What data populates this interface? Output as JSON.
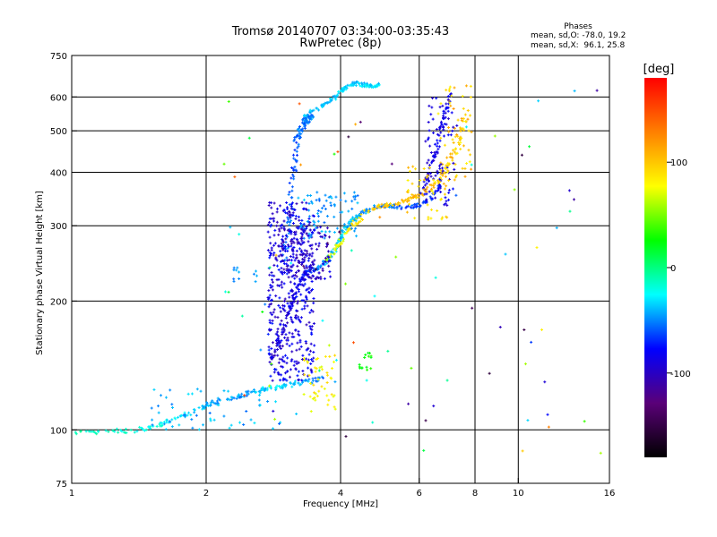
{
  "chart_data": {
    "type": "scatter",
    "title": "Tromsø 20140707 03:34:00-03:35:43",
    "subtitle": "RwPretec (8p)",
    "xlabel": "Frequency [MHz]",
    "ylabel": "Stationary phase Virtual Height [km]",
    "x_scale": "log",
    "y_scale": "log",
    "xlim": [
      1,
      16
    ],
    "ylim": [
      75,
      750
    ],
    "x_ticks": [
      1,
      2,
      4,
      6,
      8,
      10,
      16
    ],
    "y_ticks": [
      75,
      100,
      200,
      300,
      400,
      500,
      600,
      750
    ],
    "x_grid": [
      2,
      4,
      6,
      8,
      10
    ],
    "y_grid": [
      100,
      200,
      300,
      400,
      500,
      600
    ],
    "stats": {
      "heading": "Phases",
      "line1": "mean, sd,O: -78.0, 19.2",
      "line2": "mean, sd,X:  96.1, 25.8"
    },
    "colorbar": {
      "label": "[deg]",
      "range": [
        -180,
        180
      ],
      "ticks": [
        100,
        0,
        -100
      ],
      "stops": [
        "#000000",
        "#5a0078",
        "#0000ff",
        "#00ffff",
        "#00ff00",
        "#ffff00",
        "#ff8000",
        "#ff0000"
      ]
    },
    "series": [
      {
        "traces": [
          {
            "f": [
              1.0,
              1.2,
              1.4,
              1.55,
              1.7,
              1.85,
              2.0,
              2.2,
              2.4,
              2.6,
              2.75,
              2.95,
              3.15,
              3.4,
              3.7
            ],
            "h": [
              98,
              99,
              100,
              102,
              106,
              110,
              114,
              118,
              120,
              123,
              125,
              126,
              128,
              130,
              133
            ],
            "c": [
              -10,
              -15,
              -20,
              -25,
              -30,
              -35,
              -40,
              -45,
              -45,
              -40,
              -35,
              -30,
              -35,
              -45,
              -55
            ],
            "s": 0.025
          },
          {
            "f": [
              2.8,
              2.9,
              3.0,
              3.1,
              3.2,
              3.3,
              3.4,
              3.6,
              3.75,
              3.9,
              4.0,
              4.15,
              4.3,
              4.5,
              4.8,
              5.2,
              5.6,
              6.0,
              6.4,
              6.8
            ],
            "h": [
              145,
              160,
              175,
              195,
              215,
              230,
              235,
              240,
              250,
              265,
              282,
              300,
              312,
              322,
              332,
              334,
              330,
              335,
              350,
              380
            ],
            "c": [
              -100,
              -95,
              -95,
              -90,
              -85,
              -80,
              -70,
              -50,
              -40,
              -35,
              -30,
              -35,
              -40,
              -45,
              -50,
              -55,
              -60,
              -65,
              -70,
              -75
            ],
            "s": 0.02
          },
          {
            "f": [
              3.0,
              3.05,
              3.1,
              3.15,
              3.2,
              3.25,
              3.3,
              3.35,
              3.4,
              3.45
            ],
            "h": [
              250,
              300,
              360,
              420,
              480,
              500,
              520,
              530,
              535,
              540
            ],
            "c": [
              -55,
              -55,
              -60,
              -60,
              -60,
              -55,
              -55,
              -50,
              -50,
              -50
            ],
            "s": 0.03
          },
          {
            "f": [
              3.3,
              3.5,
              3.7,
              3.9,
              4.05,
              4.2,
              4.35,
              4.5,
              4.7,
              4.9
            ],
            "h": [
              540,
              560,
              575,
              600,
              625,
              640,
              645,
              640,
              635,
              640
            ],
            "c": [
              -40,
              -40,
              -35,
              -35,
              -35,
              -35,
              -35,
              -35,
              -30,
              -30
            ],
            "s": 0.02
          },
          {
            "f": [
              3.7,
              3.9,
              4.1,
              4.3,
              4.6,
              5.0,
              5.4,
              5.8,
              6.2,
              6.6,
              7.0,
              7.4,
              7.7
            ],
            "h": [
              250,
              265,
              285,
              305,
              325,
              335,
              340,
              348,
              360,
              380,
              420,
              480,
              560
            ],
            "c": [
              60,
              70,
              80,
              90,
              95,
              100,
              100,
              105,
              110,
              105,
              100,
              95,
              90
            ],
            "s": 0.025
          },
          {
            "f": [
              6.1,
              6.3,
              6.5,
              6.7,
              6.9,
              7.1
            ],
            "h": [
              355,
              390,
              440,
              500,
              560,
              620
            ],
            "c": [
              -90,
              -90,
              -85,
              -85,
              -80,
              -80
            ],
            "s": 0.025
          }
        ]
      },
      {
        "clouds": [
          {
            "f": [
              2.75,
              3.5
            ],
            "h": [
              130,
              340
            ],
            "c": [
              -105,
              -70
            ],
            "n": 450
          },
          {
            "f": [
              2.9,
              3.8
            ],
            "h": [
              225,
              300
            ],
            "c": [
              -110,
              -80
            ],
            "n": 140
          },
          {
            "f": [
              3.2,
              4.4
            ],
            "h": [
              280,
              360
            ],
            "c": [
              -60,
              -35
            ],
            "n": 80
          },
          {
            "f": [
              3.3,
              3.9
            ],
            "h": [
              110,
              150
            ],
            "c": [
              70,
              95
            ],
            "n": 45
          },
          {
            "f": [
              4.4,
              4.7
            ],
            "h": [
              138,
              152
            ],
            "c": [
              20,
              35
            ],
            "n": 15
          },
          {
            "f": [
              2.3,
              2.6
            ],
            "h": [
              218,
              240
            ],
            "c": [
              -55,
              -40
            ],
            "n": 12
          },
          {
            "f": [
              1.5,
              3.0
            ],
            "h": [
              100,
              125
            ],
            "c": [
              -60,
              -30
            ],
            "n": 60
          },
          {
            "f": [
              6.6,
              7.9
            ],
            "h": [
              380,
              640
            ],
            "c": [
              80,
              120
            ],
            "n": 60
          },
          {
            "f": [
              6.2,
              7.3
            ],
            "h": [
              330,
              600
            ],
            "c": [
              -100,
              -75
            ],
            "n": 80
          },
          {
            "f": [
              5.6,
              7.0
            ],
            "h": [
              310,
              420
            ],
            "c": [
              80,
              110
            ],
            "n": 50
          }
        ]
      },
      {
        "sparse": {
          "f": [
            2.1,
            16
          ],
          "h": [
            80,
            640
          ],
          "c": [
            -160,
            160
          ],
          "n": 90
        }
      }
    ]
  }
}
